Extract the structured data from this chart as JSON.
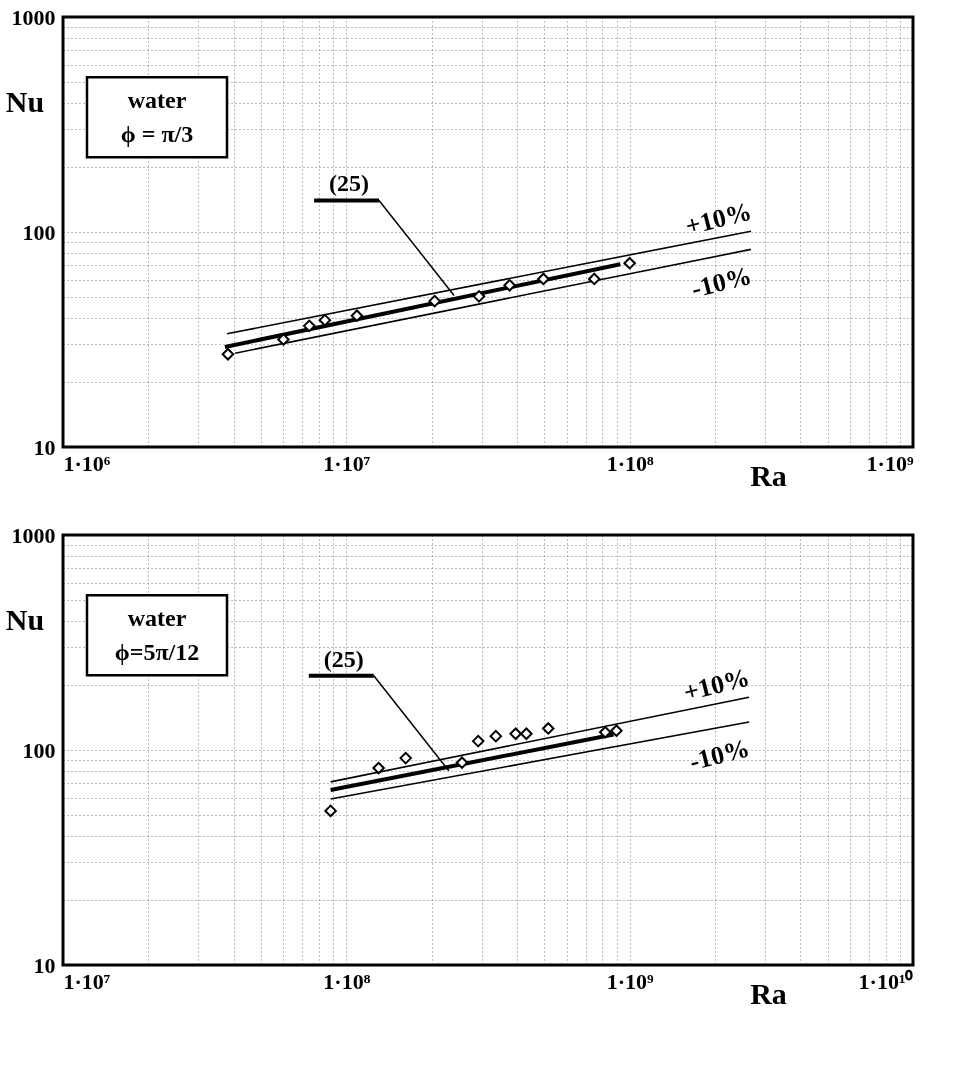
{
  "chart_data": [
    {
      "type": "scatter",
      "xlabel": "Ra",
      "ylabel": "Nu",
      "log": "xy",
      "grid": true,
      "marker": "diamond",
      "xlim": [
        1000000,
        1000000000
      ],
      "ylim": [
        10,
        1000
      ],
      "xticks": [
        {
          "value": 1000000,
          "label": "1·10⁶"
        },
        {
          "value": 2000000,
          "label": null
        },
        {
          "value": 3000000,
          "label": null
        },
        {
          "value": 4000000,
          "label": null
        },
        {
          "value": 5000000,
          "label": null
        },
        {
          "value": 6000000,
          "label": null
        },
        {
          "value": 7000000,
          "label": null
        },
        {
          "value": 8000000,
          "label": null
        },
        {
          "value": 9000000,
          "label": null
        },
        {
          "value": 10000000,
          "label": "1·10⁷"
        },
        {
          "value": 20000000,
          "label": null
        },
        {
          "value": 30000000,
          "label": null
        },
        {
          "value": 40000000,
          "label": null
        },
        {
          "value": 50000000,
          "label": null
        },
        {
          "value": 60000000,
          "label": null
        },
        {
          "value": 70000000,
          "label": null
        },
        {
          "value": 80000000,
          "label": null
        },
        {
          "value": 90000000,
          "label": null
        },
        {
          "value": 100000000,
          "label": "1·10⁸"
        },
        {
          "value": 200000000,
          "label": null
        },
        {
          "value": 300000000,
          "label": null
        },
        {
          "value": 400000000,
          "label": null
        },
        {
          "value": 500000000,
          "label": null
        },
        {
          "value": 600000000,
          "label": null
        },
        {
          "value": 700000000,
          "label": null
        },
        {
          "value": 800000000,
          "label": null
        },
        {
          "value": 900000000,
          "label": null
        },
        {
          "value": 1000000000,
          "label": "1·10⁹"
        }
      ],
      "yticks": [
        10,
        {
          "value": 20,
          "label": null
        },
        {
          "value": 30,
          "label": null
        },
        {
          "value": 40,
          "label": null
        },
        {
          "value": 50,
          "label": null
        },
        {
          "value": 60,
          "label": null
        },
        {
          "value": 70,
          "label": null
        },
        {
          "value": 80,
          "label": null
        },
        {
          "value": 90,
          "label": null
        },
        100,
        {
          "value": 200,
          "label": null
        },
        {
          "value": 300,
          "label": null
        },
        {
          "value": 400,
          "label": null
        },
        {
          "value": 500,
          "label": null
        },
        {
          "value": 600,
          "label": null
        },
        {
          "value": 700,
          "label": null
        },
        {
          "value": 800,
          "label": null
        },
        {
          "value": 900,
          "label": null
        },
        1000
      ],
      "series": [
        {
          "color": "#000000",
          "x": [
            3820000,
            6000000,
            7400000,
            8400000,
            10900000,
            20500000,
            29400000,
            37700000,
            49600000,
            75000000,
            100000000
          ],
          "values": [
            27.0,
            31.6,
            36.6,
            38.9,
            40.8,
            47.7,
            50.2,
            56.5,
            60.5,
            60.5,
            71.6
          ]
        },
        {
          "type": "line",
          "marker": "none",
          "color": "#000000",
          "x": [
            3730000,
            92700000
          ],
          "values": [
            29.2,
            70.8
          ]
        },
        {
          "type": "line",
          "marker": "none",
          "color": "#000000",
          "x": [
            3790000,
            268000000
          ],
          "values": [
            33.6,
            100.9
          ]
        },
        {
          "type": "line",
          "marker": "none",
          "color": "#000000",
          "x": [
            4050000,
            268000000
          ],
          "values": [
            27.3,
            83.0
          ]
        }
      ],
      "annotations": [
        {
          "text": "(25)",
          "x": 24000000,
          "y": 50.7
        },
        {
          "text": "+10%",
          "x": 268000000,
          "y": 100.9
        },
        {
          "text": "-10%",
          "x": 268000000,
          "y": 83.0
        },
        "water",
        "ϕ = π/3"
      ]
    },
    {
      "type": "scatter",
      "xlabel": "Ra",
      "ylabel": "Nu",
      "log": "xy",
      "grid": true,
      "marker": "diamond",
      "xlim": [
        10000000,
        10000000000
      ],
      "ylim": [
        10,
        1000
      ],
      "xticks": [
        {
          "value": 10000000,
          "label": "1·10⁷"
        },
        {
          "value": 20000000,
          "label": null
        },
        {
          "value": 30000000,
          "label": null
        },
        {
          "value": 40000000,
          "label": null
        },
        {
          "value": 50000000,
          "label": null
        },
        {
          "value": 60000000,
          "label": null
        },
        {
          "value": 70000000,
          "label": null
        },
        {
          "value": 80000000,
          "label": null
        },
        {
          "value": 90000000,
          "label": null
        },
        {
          "value": 100000000,
          "label": "1·10⁸"
        },
        {
          "value": 200000000,
          "label": null
        },
        {
          "value": 300000000,
          "label": null
        },
        {
          "value": 400000000,
          "label": null
        },
        {
          "value": 500000000,
          "label": null
        },
        {
          "value": 600000000,
          "label": null
        },
        {
          "value": 700000000,
          "label": null
        },
        {
          "value": 800000000,
          "label": null
        },
        {
          "value": 900000000,
          "label": null
        },
        {
          "value": 1000000000,
          "label": "1·10⁹"
        },
        {
          "value": 2000000000,
          "label": null
        },
        {
          "value": 3000000000,
          "label": null
        },
        {
          "value": 4000000000,
          "label": null
        },
        {
          "value": 5000000000,
          "label": null
        },
        {
          "value": 6000000000,
          "label": null
        },
        {
          "value": 7000000000,
          "label": null
        },
        {
          "value": 8000000000,
          "label": null
        },
        {
          "value": 9000000000,
          "label": null
        },
        {
          "value": 10000000000,
          "label": "1·10¹⁰"
        }
      ],
      "yticks": [
        10,
        {
          "value": 20,
          "label": null
        },
        {
          "value": 30,
          "label": null
        },
        {
          "value": 40,
          "label": null
        },
        {
          "value": 50,
          "label": null
        },
        {
          "value": 60,
          "label": null
        },
        {
          "value": 70,
          "label": null
        },
        {
          "value": 80,
          "label": null
        },
        {
          "value": 90,
          "label": null
        },
        100,
        {
          "value": 200,
          "label": null
        },
        {
          "value": 300,
          "label": null
        },
        {
          "value": 400,
          "label": null
        },
        {
          "value": 500,
          "label": null
        },
        {
          "value": 600,
          "label": null
        },
        {
          "value": 700,
          "label": null
        },
        {
          "value": 800,
          "label": null
        },
        {
          "value": 900,
          "label": null
        },
        1000
      ],
      "series": [
        {
          "color": "#000000",
          "x": [
            88000000,
            130000000,
            162000000,
            256000000,
            292000000,
            337000000,
            396000000,
            432000000,
            516000000,
            820000000,
            898000000
          ],
          "values": [
            52.1,
            82.4,
            91.7,
            87.3,
            110,
            116,
            119,
            119,
            126,
            121,
            123
          ]
        },
        {
          "type": "line",
          "marker": "none",
          "color": "#000000",
          "x": [
            88000000,
            877000000
          ],
          "values": [
            65.2,
            118
          ]
        },
        {
          "type": "line",
          "marker": "none",
          "color": "#000000",
          "x": [
            88000000,
            2640000000
          ],
          "values": [
            71.1,
            176
          ]
        },
        {
          "type": "line",
          "marker": "none",
          "color": "#000000",
          "x": [
            88000000,
            2640000000
          ],
          "values": [
            59.2,
            135
          ]
        }
      ],
      "annotations": [
        {
          "text": "(25)",
          "x": 230000000,
          "y": 80
        },
        {
          "text": "+10%",
          "x": 2640000000,
          "y": 176
        },
        {
          "text": "-10%",
          "x": 2640000000,
          "y": 135
        },
        "water",
        "ϕ=5π/12"
      ]
    }
  ]
}
